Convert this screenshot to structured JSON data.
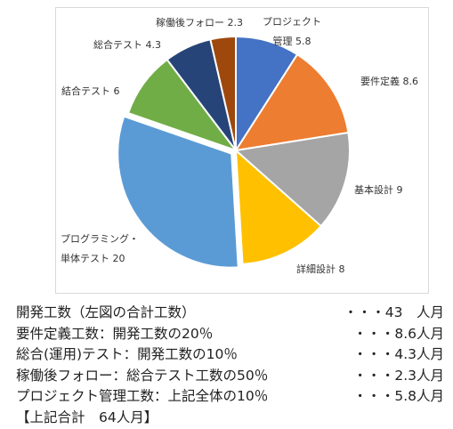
{
  "chart_data": {
    "type": "pie",
    "unit": "人月",
    "categories": [
      "プロジェクト管理",
      "要件定義",
      "基本設計",
      "詳細設計",
      "プログラミング・単体テスト",
      "結合テスト",
      "総合テスト",
      "稼働後フォロー"
    ],
    "values": [
      5.8,
      8.6,
      9,
      8,
      20,
      6,
      4.3,
      2.3
    ],
    "colors": [
      "#4472c4",
      "#ed7d31",
      "#a5a5a5",
      "#ffc000",
      "#5b9bd5",
      "#70ad47",
      "#264478",
      "#9e480e"
    ],
    "labels": [
      {
        "lines": [
          "プロジェクト",
          "管理 5.8"
        ]
      },
      {
        "lines": [
          "要件定義 8.6"
        ]
      },
      {
        "lines": [
          "基本設計 9"
        ]
      },
      {
        "lines": [
          "詳細設計 8"
        ]
      },
      {
        "lines": [
          "プログラミング・",
          "単体テスト 20"
        ]
      },
      {
        "lines": [
          "結合テスト 6"
        ]
      },
      {
        "lines": [
          "総合テスト 4.3"
        ]
      },
      {
        "lines": [
          "稼働後フォロー 2.3"
        ]
      }
    ]
  },
  "notes": [
    {
      "text": "開発工数（左図の合計工数）",
      "value": "・・・43　人月"
    },
    {
      "text": "要件定義工数：開発工数の20％",
      "value": "・・・8.6人月"
    },
    {
      "text": "総合(運用)テスト：開発工数の10％",
      "value": "・・・4.3人月"
    },
    {
      "text": "稼働後フォロー：総合テスト工数の50％",
      "value": "・・・2.3人月"
    },
    {
      "text": "プロジェクト管理工数：上記全体の10％",
      "value": "・・・5.8人月"
    }
  ],
  "total": "【上記合計　64人月】"
}
